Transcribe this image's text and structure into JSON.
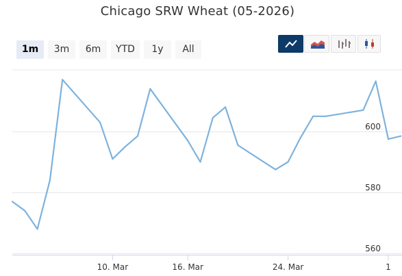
{
  "title": "Chicago SRW Wheat (05-2026)",
  "range_buttons": [
    {
      "label": "1m",
      "active": true
    },
    {
      "label": "3m",
      "active": false
    },
    {
      "label": "6m",
      "active": false
    },
    {
      "label": "YTD",
      "active": false
    },
    {
      "label": "1y",
      "active": false
    },
    {
      "label": "All",
      "active": false
    }
  ],
  "chart_type_buttons": [
    {
      "icon": "line-chart-icon",
      "active": true
    },
    {
      "icon": "area-chart-icon",
      "active": false
    },
    {
      "icon": "ohlc-chart-icon",
      "active": false
    },
    {
      "icon": "candlestick-chart-icon",
      "active": false
    }
  ],
  "colors": {
    "series": "#7eb2dd",
    "active_button": "#0d3a66",
    "grid": "#e6e6e6"
  },
  "chart_data": {
    "type": "line",
    "title": "Chicago SRW Wheat (05-2026)",
    "xlabel": "",
    "ylabel": "",
    "x": [
      "2026-03-02",
      "2026-03-03",
      "2026-03-04",
      "2026-03-05",
      "2026-03-06",
      "2026-03-09",
      "2026-03-10",
      "2026-03-11",
      "2026-03-12",
      "2026-03-13",
      "2026-03-16",
      "2026-03-17",
      "2026-03-18",
      "2026-03-19",
      "2026-03-20",
      "2026-03-23",
      "2026-03-24",
      "2026-03-25",
      "2026-03-26",
      "2026-03-27",
      "2026-03-30",
      "2026-03-31",
      "2026-04-01",
      "2026-04-02"
    ],
    "series": [
      {
        "values": [
          577,
          574,
          568,
          584,
          617,
          603,
          591,
          595,
          598.5,
          614,
          597,
          590,
          604.5,
          608,
          595.5,
          587.5,
          590,
          598,
          605,
          605,
          607,
          616.5,
          597.5,
          598.5
        ]
      }
    ],
    "x_ticks": [
      {
        "date": "2026-03-10",
        "label": "10. Mar"
      },
      {
        "date": "2026-03-16",
        "label": "16. Mar"
      },
      {
        "date": "2026-03-24",
        "label": "24. Mar"
      },
      {
        "date": "2026-04-01",
        "label": "1"
      }
    ],
    "y_ticks": [
      560,
      580,
      600
    ],
    "grid": true,
    "legend": "none"
  }
}
